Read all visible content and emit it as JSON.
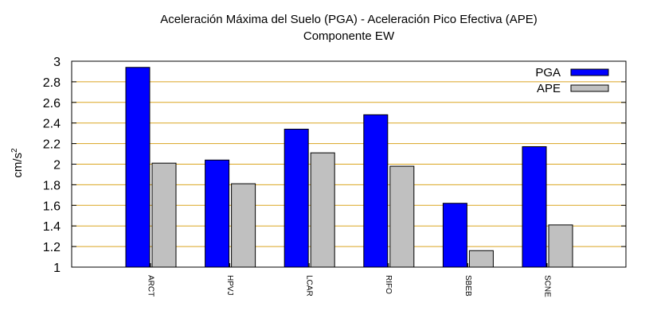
{
  "chart_data": {
    "type": "bar",
    "title": "Aceleración Máxima del Suelo (PGA) -  Aceleración Pico Efectiva (APE)",
    "subtitle": "Componente EW",
    "xlabel": "",
    "ylabel": "cm/s",
    "ylabel_superscript": "2",
    "categories": [
      "ARCT",
      "HPVJ",
      "LCAR",
      "RIFO",
      "SBEB",
      "SCNE"
    ],
    "series": [
      {
        "name": "PGA",
        "color": "#0000ff",
        "values": [
          2.94,
          2.04,
          2.34,
          2.48,
          1.62,
          2.17
        ]
      },
      {
        "name": "APE",
        "color": "#c0c0c0",
        "values": [
          2.01,
          1.81,
          2.11,
          1.98,
          1.16,
          1.41
        ]
      }
    ],
    "ylim": [
      1,
      3
    ],
    "yticks": [
      "1",
      "1.2",
      "1.4",
      "1.6",
      "1.8",
      "2",
      "2.2",
      "2.4",
      "2.6",
      "2.8",
      "3"
    ],
    "grid": true,
    "grid_color": "#daa520",
    "legend": "top-right"
  }
}
